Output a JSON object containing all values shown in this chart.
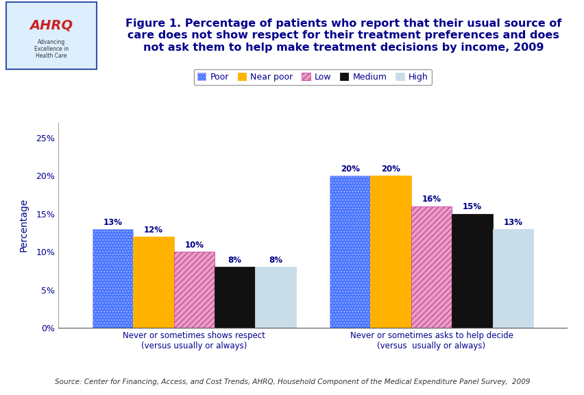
{
  "title": "Figure 1. Percentage of patients who report that their usual source of\ncare does not show respect for their treatment preferences and does\nnot ask them to help make treatment decisions by income, 2009",
  "categories": [
    "Never or sometimes shows respect\n(versus usually or always)",
    "Never or sometimes asks to help decide\n(versus  usually or always)"
  ],
  "series": [
    {
      "label": "Poor",
      "color": "#4477FF",
      "hatch": "....",
      "edgecolor": "#AAAAFF",
      "values": [
        13,
        20
      ]
    },
    {
      "label": "Near poor",
      "color": "#FFB300",
      "hatch": "",
      "edgecolor": "#FFB300",
      "values": [
        12,
        20
      ]
    },
    {
      "label": "Low",
      "color": "#E8A0C0",
      "hatch": "////",
      "edgecolor": "#CC44AA",
      "values": [
        10,
        16
      ]
    },
    {
      "label": "Medium",
      "color": "#111111",
      "hatch": "",
      "edgecolor": "#111111",
      "values": [
        8,
        15
      ]
    },
    {
      "label": "High",
      "color": "#C8DDE8",
      "hatch": "",
      "edgecolor": "#C8DDE8",
      "values": [
        8,
        13
      ]
    }
  ],
  "ylabel": "Percentage",
  "ylim": [
    0,
    27
  ],
  "yticks": [
    0,
    5,
    10,
    15,
    20,
    25
  ],
  "yticklabels": [
    "0%",
    "5%",
    "10%",
    "15%",
    "20%",
    "25%"
  ],
  "text_color": "#00008B",
  "source_text": "Source: Center for Financing, Access, and Cost Trends, AHRQ, Household Component of the Medical Expenditure Panel Survey,  2009",
  "bar_width": 0.12,
  "group_centers": [
    0.35,
    1.05
  ],
  "header_bg": "#FFFFFF",
  "fig_bg": "#FFFFFF",
  "plot_bg": "#FFFFFF",
  "label_fontsize": 8.5,
  "value_fontsize": 8.5,
  "title_fontsize": 11.5,
  "ylabel_fontsize": 10,
  "tick_fontsize": 9,
  "legend_fontsize": 9,
  "source_fontsize": 7.5,
  "separator_color": "#00008B",
  "legend_box_color": "#00008B"
}
